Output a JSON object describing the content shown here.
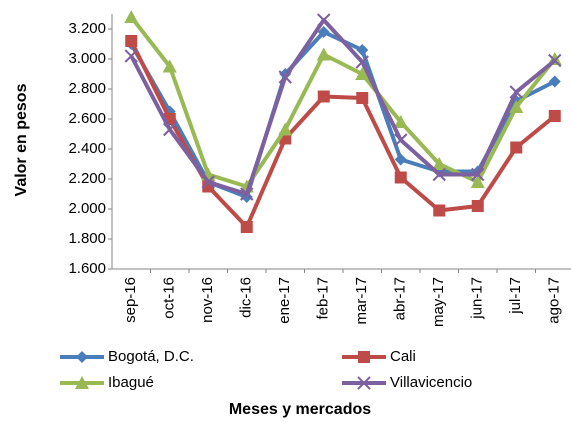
{
  "chart_data": {
    "type": "line",
    "y_label": "Valor en pesos",
    "x_label": "Meses y mercados",
    "categories": [
      "sep-16",
      "oct-16",
      "nov-16",
      "dic-16",
      "ene-17",
      "feb-17",
      "mar-17",
      "abr-17",
      "may-17",
      "jun-17",
      "jul-17",
      "ago-17"
    ],
    "series": [
      {
        "name": "Bogotá, D.C.",
        "color": "#4a7ebb",
        "marker": "diamond",
        "values": [
          3100,
          2650,
          2180,
          2080,
          2900,
          3180,
          3060,
          2330,
          2250,
          2250,
          2720,
          2850
        ]
      },
      {
        "name": "Cali",
        "color": "#be4b48",
        "marker": "square",
        "values": [
          3120,
          2600,
          2150,
          1880,
          2470,
          2750,
          2740,
          2210,
          1990,
          2020,
          2410,
          2620
        ]
      },
      {
        "name": "Ibagué",
        "color": "#98b954",
        "marker": "triangle",
        "values": [
          3280,
          2950,
          2230,
          2150,
          2530,
          3030,
          2900,
          2580,
          2300,
          2180,
          2680,
          3000
        ]
      },
      {
        "name": "Villavicencio",
        "color": "#7d60a0",
        "marker": "x",
        "values": [
          3020,
          2530,
          2180,
          2100,
          2880,
          3260,
          2980,
          2460,
          2230,
          2230,
          2780,
          2990
        ]
      }
    ],
    "ylim": [
      1600,
      3300
    ],
    "yticks": [
      {
        "value": 1600,
        "label": "1.600"
      },
      {
        "value": 1800,
        "label": "1.800"
      },
      {
        "value": 2000,
        "label": "2.000"
      },
      {
        "value": 2200,
        "label": "2.200"
      },
      {
        "value": 2400,
        "label": "2.400"
      },
      {
        "value": 2600,
        "label": "2.600"
      },
      {
        "value": 2800,
        "label": "2.800"
      },
      {
        "value": 3000,
        "label": "3.000"
      },
      {
        "value": 3200,
        "label": "3.200"
      }
    ],
    "grid": false,
    "legend": "bottom"
  }
}
